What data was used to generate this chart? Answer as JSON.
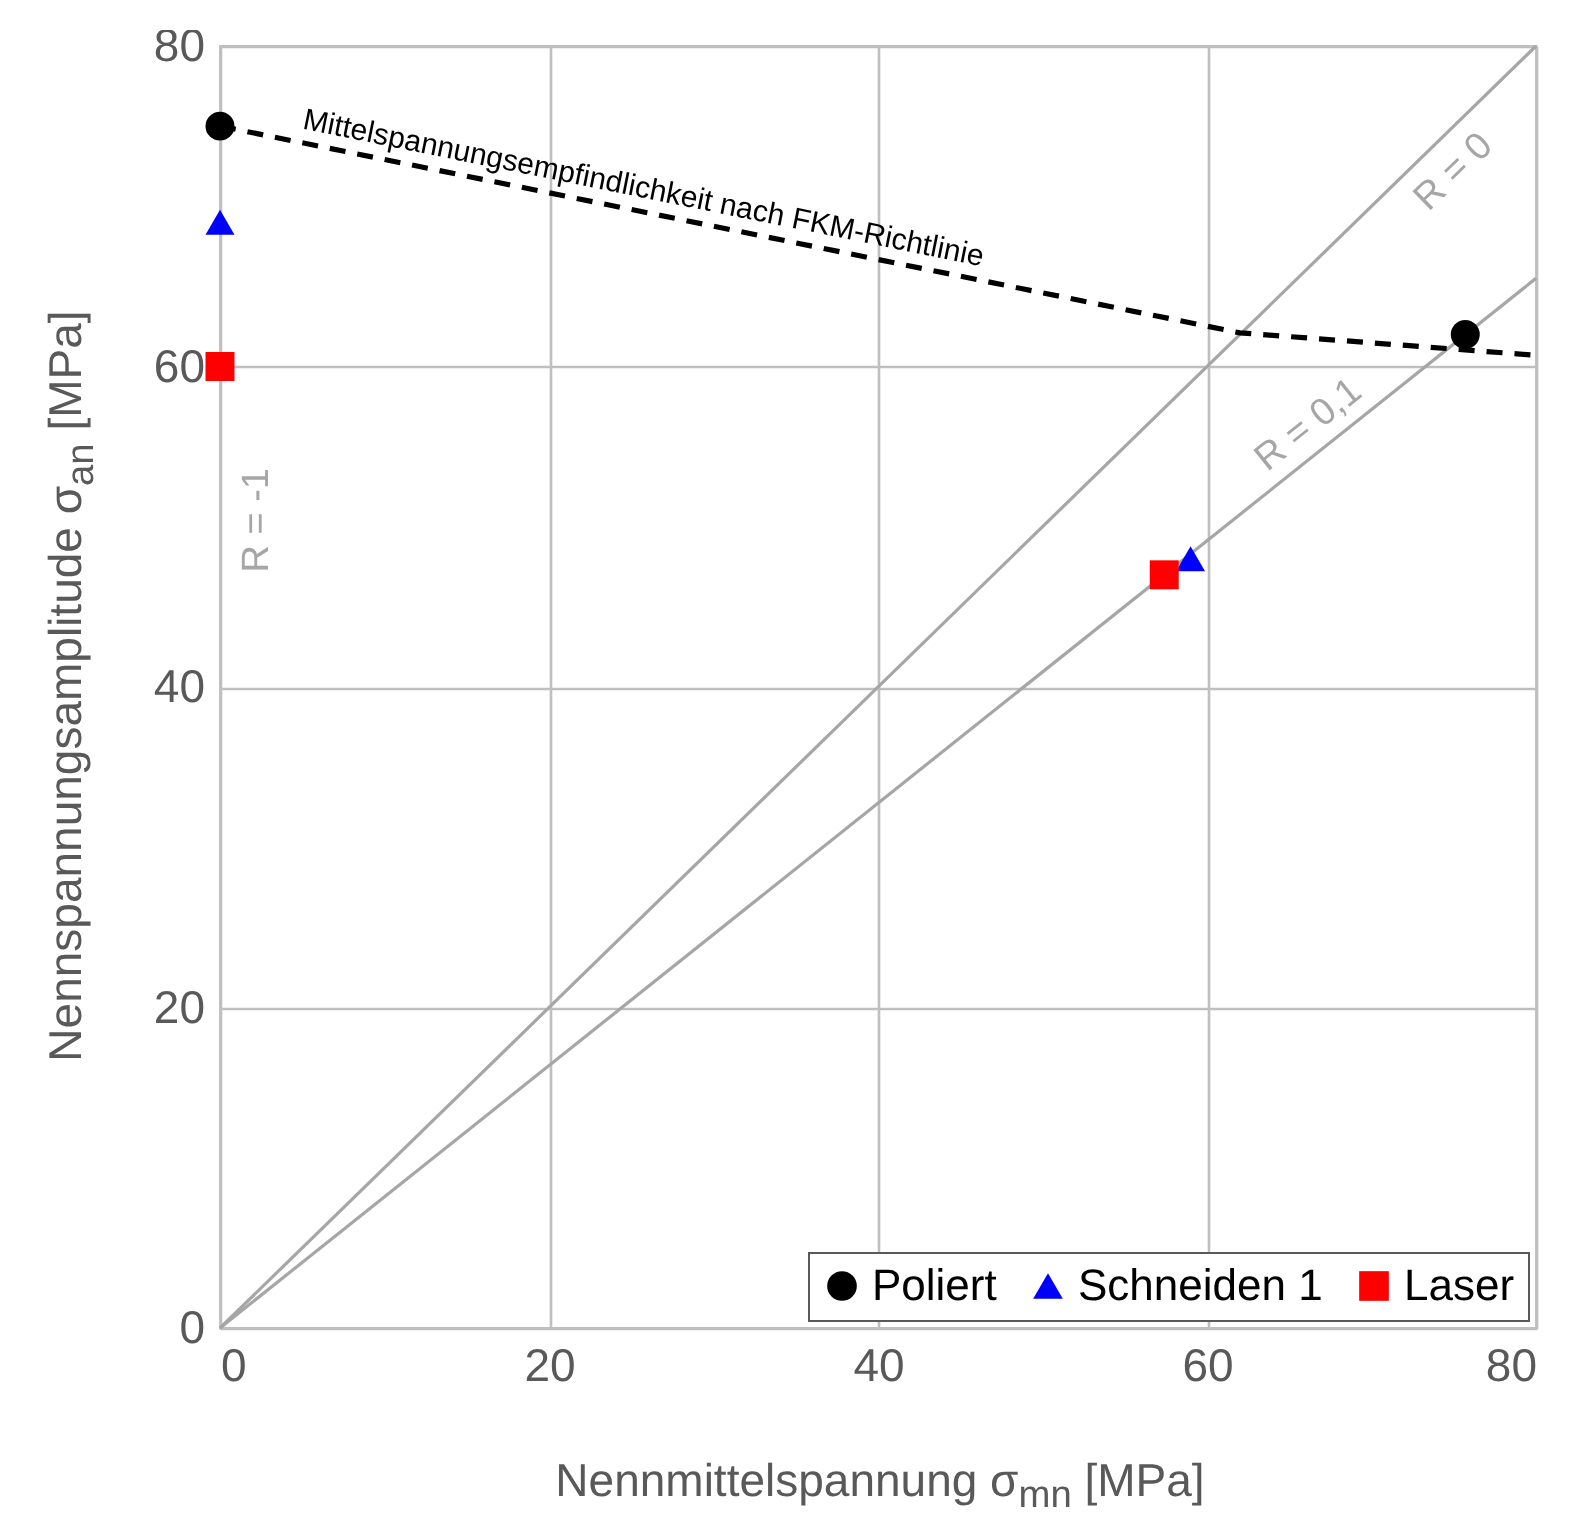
{
  "chart_data": {
    "type": "scatter",
    "xlabel": "Nennmittelspannung σ$_{mn}$ [MPa]",
    "ylabel": "Nennspannungsamplitude σ$_{an}$ [MPa]",
    "xlim": [
      0,
      80
    ],
    "ylim": [
      0,
      80
    ],
    "xticks": [
      0,
      20,
      40,
      60,
      80
    ],
    "yticks": [
      0,
      20,
      40,
      60,
      80
    ],
    "grid": true,
    "legend": "bottom right",
    "annotations": [
      "R = -1"
    ],
    "series": [
      {
        "name": "R = 0",
        "type": "line",
        "color": "#a6a6a6",
        "line_style": "solid",
        "marker": "none",
        "x": [
          0,
          80
        ],
        "values": [
          0,
          80
        ]
      },
      {
        "name": "R = 0,1",
        "type": "line",
        "color": "#a6a6a6",
        "line_style": "solid",
        "marker": "none",
        "x": [
          0,
          80
        ],
        "values": [
          0,
          65.5
        ]
      },
      {
        "name": "Mittelspannungsempfindlichkeit nach FKM-Richtlinie",
        "type": "line",
        "color": "#000000",
        "line_style": "dashed",
        "marker": "none",
        "x": [
          0,
          62,
          80
        ],
        "values": [
          75,
          62.1,
          60.7
        ]
      },
      {
        "name": "Poliert",
        "color": "#000000",
        "marker": "circle",
        "x": [
          0,
          75.7
        ],
        "values": [
          75,
          62
        ]
      },
      {
        "name": "Schneiden 1",
        "color": "#0000ff",
        "marker": "triangle",
        "x": [
          0,
          59
        ],
        "values": [
          69,
          48
        ]
      },
      {
        "name": "Laser",
        "color": "#ff0000",
        "marker": "square",
        "x": [
          0,
          57.4
        ],
        "values": [
          60,
          47
        ]
      }
    ]
  }
}
